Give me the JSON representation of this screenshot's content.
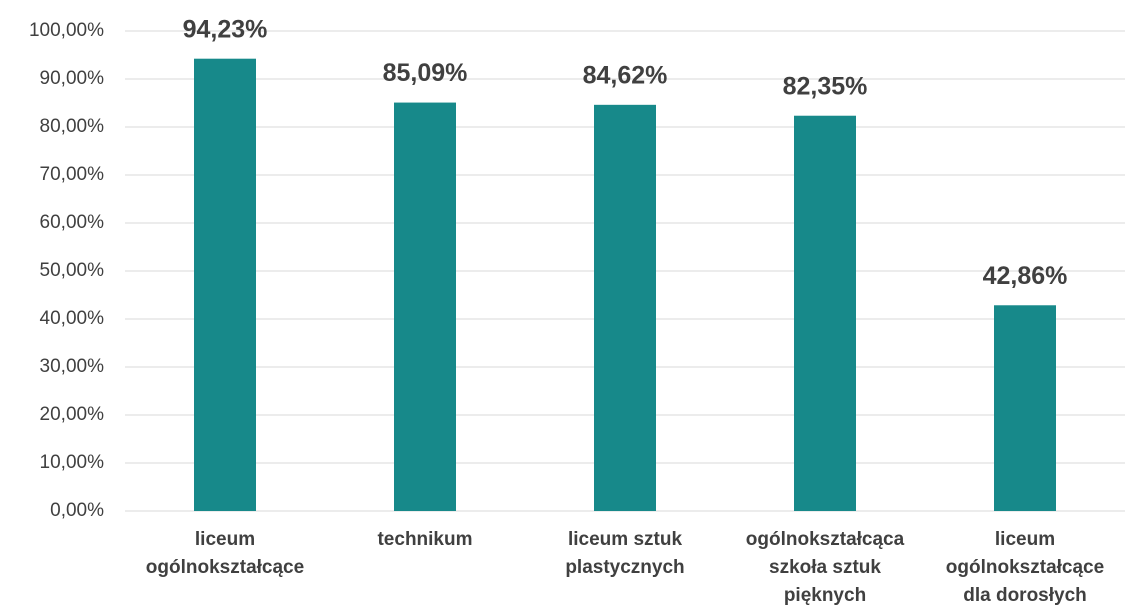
{
  "chart_data": {
    "type": "bar",
    "categories": [
      "liceum ogólnokształcące",
      "technikum",
      "liceum sztuk plastycznych",
      "ogólnokształcąca szkoła sztuk pięknych",
      "liceum ogólnokształcące dla dorosłych"
    ],
    "values": [
      94.23,
      85.09,
      84.62,
      82.35,
      42.86
    ],
    "value_labels": [
      "94,23%",
      "85,09%",
      "84,62%",
      "82,35%",
      "42,86%"
    ],
    "color": "#17898a",
    "ylim": [
      0,
      100
    ],
    "yticks": [
      {
        "value": 0,
        "label": "0,00%"
      },
      {
        "value": 10,
        "label": "10,00%"
      },
      {
        "value": 20,
        "label": "20,00%"
      },
      {
        "value": 30,
        "label": "30,00%"
      },
      {
        "value": 40,
        "label": "40,00%"
      },
      {
        "value": 50,
        "label": "50,00%"
      },
      {
        "value": 60,
        "label": "60,00%"
      },
      {
        "value": 70,
        "label": "70,00%"
      },
      {
        "value": 80,
        "label": "80,00%"
      },
      {
        "value": 90,
        "label": "90,00%"
      },
      {
        "value": 100,
        "label": "100,00%"
      }
    ],
    "grid": true
  }
}
